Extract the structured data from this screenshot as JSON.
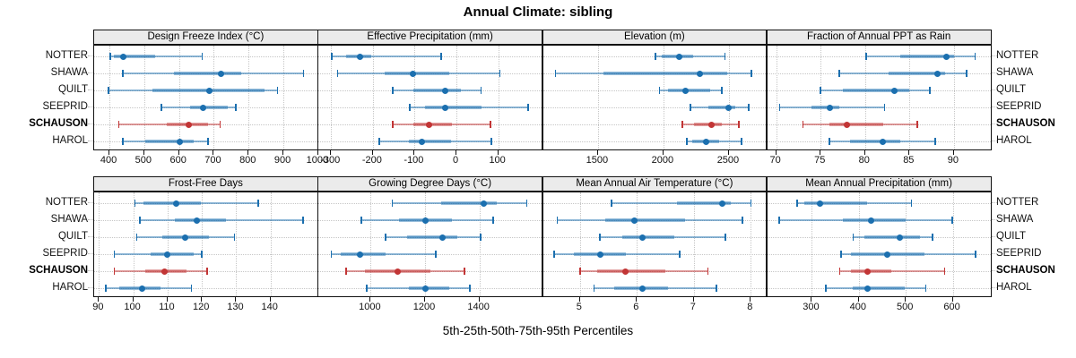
{
  "title": "Annual Climate: sibling",
  "caption": "5th-25th-50th-75th-95th Percentiles",
  "sites": [
    "NOTTER",
    "SHAWA",
    "QUILT",
    "SEEPRID",
    "SCHAUSON",
    "HAROL"
  ],
  "highlight_site": "SCHAUSON",
  "colors": {
    "series_blue": "#1B6FAF",
    "series_red": "#C23535",
    "strip_bg": "#EBEBEB",
    "grid": "#C6C6C6",
    "border": "#111111",
    "text": "#000000"
  },
  "chart_data": {
    "type": "table",
    "subtype": "percentile-dotplot-lattice",
    "percentiles": [
      "5th",
      "25th",
      "50th",
      "75th",
      "95th"
    ],
    "panel_grid": {
      "rows": 2,
      "cols": 4
    },
    "panels": [
      {
        "title": "Design Freeze Index (°C)",
        "domain": [
          356,
          1001
        ],
        "ticks": [
          400,
          500,
          600,
          700,
          800,
          900,
          1000
        ],
        "values": {
          "NOTTER": [
            402,
            412,
            440,
            530,
            667
          ],
          "SHAWA": [
            438,
            585,
            720,
            778,
            958
          ],
          "QUILT": [
            398,
            523,
            688,
            846,
            883
          ],
          "SEEPRID": [
            549,
            632,
            670,
            740,
            763
          ],
          "SCHAUSON": [
            427,
            564,
            628,
            684,
            718
          ],
          "HAROL": [
            438,
            504,
            601,
            641,
            684
          ]
        }
      },
      {
        "title": "Effective Precipitation (mm)",
        "domain": [
          -330,
          207
        ],
        "ticks": [
          -300,
          -200,
          -100,
          0,
          100
        ],
        "values": {
          "NOTTER": [
            -298,
            -264,
            -230,
            -204,
            -36
          ],
          "SHAWA": [
            -284,
            -171,
            -105,
            -18,
            104
          ],
          "QUILT": [
            -152,
            -104,
            -27,
            11,
            59
          ],
          "SEEPRID": [
            -112,
            -75,
            -27,
            61,
            171
          ],
          "SCHAUSON": [
            -152,
            -104,
            -66,
            -11,
            82
          ],
          "HAROL": [
            -184,
            -114,
            -82,
            -14,
            84
          ]
        }
      },
      {
        "title": "Elevation (m)",
        "domain": [
          1080,
          2793
        ],
        "ticks": [
          1500,
          2000,
          2500
        ],
        "values": {
          "NOTTER": [
            1940,
            1990,
            2123,
            2230,
            2470
          ],
          "SHAWA": [
            1175,
            1545,
            2275,
            2490,
            2670
          ],
          "QUILT": [
            1970,
            2035,
            2170,
            2355,
            2445
          ],
          "SEEPRID": [
            2205,
            2345,
            2500,
            2550,
            2650
          ],
          "SCHAUSON": [
            2145,
            2235,
            2365,
            2445,
            2575
          ],
          "HAROL": [
            2180,
            2220,
            2325,
            2425,
            2595
          ]
        }
      },
      {
        "title": "Fraction of Annual PPT as Rain",
        "domain": [
          69,
          94.25
        ],
        "ticks": [
          70,
          75,
          80,
          85,
          90
        ],
        "values": {
          "NOTTER": [
            80.1,
            84.0,
            89.2,
            90.0,
            92.4
          ],
          "SHAWA": [
            77.1,
            82.6,
            88.1,
            89.0,
            91.4
          ],
          "QUILT": [
            75.0,
            77.5,
            83.3,
            85.0,
            87.3
          ],
          "SEEPRID": [
            70.4,
            74.0,
            76.0,
            77.1,
            82.2
          ],
          "SCHAUSON": [
            73.0,
            76.0,
            78.0,
            82.0,
            85.9
          ],
          "HAROL": [
            76.0,
            78.3,
            82.0,
            84.0,
            87.9
          ]
        }
      },
      {
        "title": "Frost-Free Days",
        "domain": [
          88.6,
          154
        ],
        "ticks": [
          90,
          100,
          110,
          120,
          130,
          140
        ],
        "values": {
          "NOTTER": [
            100.5,
            103,
            112.5,
            119.8,
            136.5
          ],
          "SHAWA": [
            102,
            112,
            118.5,
            127,
            149.5
          ],
          "QUILT": [
            101,
            108.5,
            115,
            122,
            129.5
          ],
          "SEEPRID": [
            94.5,
            105,
            110,
            117.5,
            120
          ],
          "SCHAUSON": [
            94.5,
            103.5,
            109,
            115.5,
            121.5
          ],
          "HAROL": [
            92,
            96,
            102.5,
            108,
            117
          ]
        }
      },
      {
        "title": "Growing Degree Days (°C)",
        "domain": [
          808,
          1634
        ],
        "ticks": [
          1000,
          1200,
          1400
        ],
        "values": {
          "NOTTER": [
            1080,
            1260,
            1415,
            1465,
            1575
          ],
          "SHAWA": [
            965,
            1105,
            1200,
            1300,
            1450
          ],
          "QUILT": [
            1055,
            1135,
            1265,
            1320,
            1405
          ],
          "SEEPRID": [
            855,
            890,
            960,
            1055,
            1240
          ],
          "SCHAUSON": [
            910,
            980,
            1100,
            1220,
            1345
          ],
          "HAROL": [
            985,
            1140,
            1200,
            1290,
            1365
          ]
        }
      },
      {
        "title": "Mean Annual Air Temperature (°C)",
        "domain": [
          4.35,
          8.29
        ],
        "ticks": [
          5,
          6,
          7,
          8
        ],
        "values": {
          "NOTTER": [
            5.55,
            6.7,
            7.5,
            7.65,
            8.0
          ],
          "SHAWA": [
            4.6,
            5.45,
            5.95,
            6.85,
            7.85
          ],
          "QUILT": [
            5.35,
            5.75,
            6.1,
            6.65,
            7.55
          ],
          "SEEPRID": [
            4.55,
            4.9,
            5.35,
            5.8,
            6.75
          ],
          "SCHAUSON": [
            5.0,
            5.3,
            5.8,
            6.5,
            7.25
          ],
          "HAROL": [
            5.25,
            5.6,
            6.1,
            6.55,
            7.4
          ]
        }
      },
      {
        "title": "Mean Annual Precipitation (mm)",
        "domain": [
          205,
          683
        ],
        "ticks": [
          300,
          400,
          500,
          600
        ],
        "values": {
          "NOTTER": [
            268,
            284,
            317,
            418,
            512
          ],
          "SHAWA": [
            230,
            366,
            426,
            500,
            599
          ],
          "QUILT": [
            388,
            412,
            487,
            530,
            557
          ],
          "SEEPRID": [
            362,
            383,
            460,
            540,
            649
          ],
          "SCHAUSON": [
            359,
            383,
            419,
            469,
            583
          ],
          "HAROL": [
            330,
            387,
            419,
            498,
            543
          ]
        }
      }
    ]
  }
}
